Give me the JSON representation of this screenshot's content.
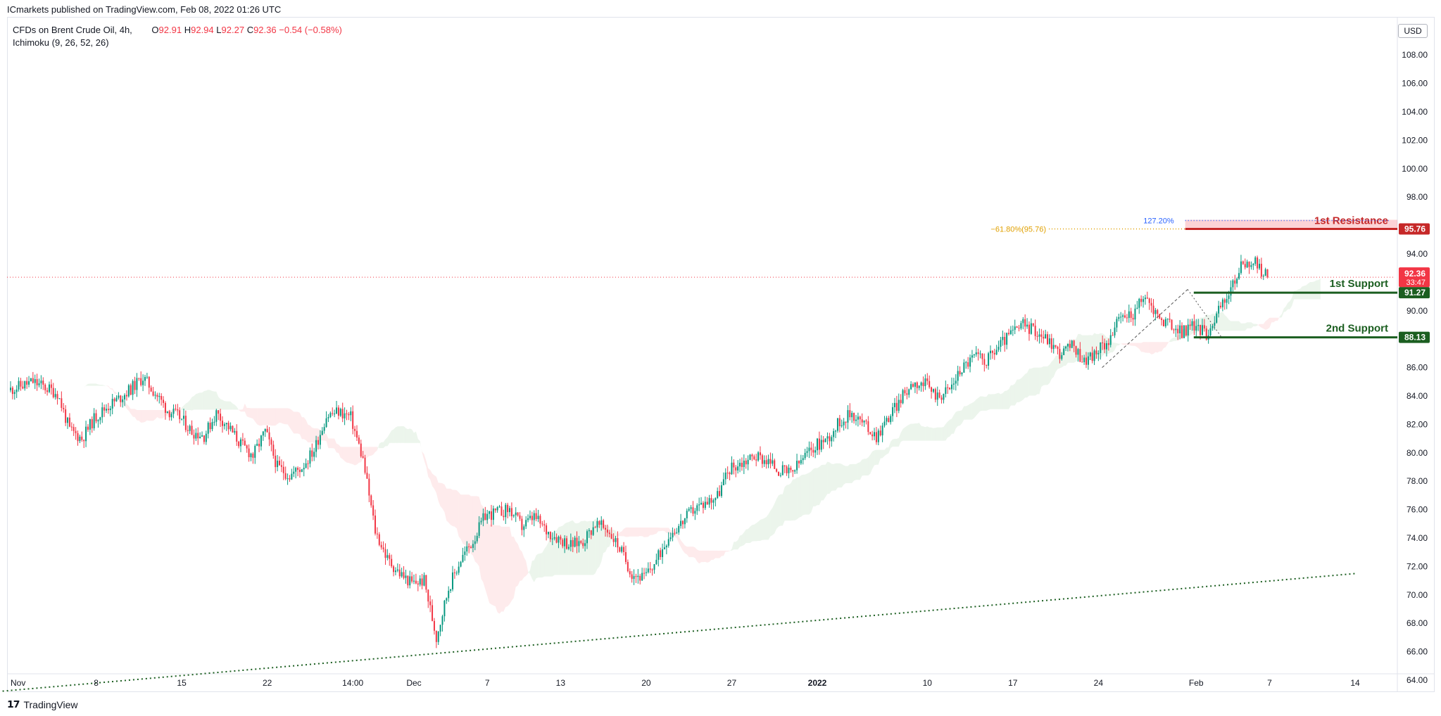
{
  "publisher": "ICmarkets published on TradingView.com, Feb 08, 2022 01:26 UTC",
  "legend": {
    "symbol": "CFDs on Brent Crude Oil, 4h,",
    "indicator": "Ichimoku (9, 26, 52, 26)",
    "open_label": "O",
    "open": "92.91",
    "high_label": "H",
    "high": "92.94",
    "low_label": "L",
    "low": "92.27",
    "close_label": "C",
    "close": "92.36",
    "change": "−0.54 (−0.58%)"
  },
  "currency": "USD",
  "footer": {
    "brand": "TradingView"
  },
  "colors": {
    "up": "#089981",
    "down": "#f23645",
    "resistance": "#c62828",
    "support": "#1b5e20",
    "fib": "#e0a000",
    "ext": "#2962ff",
    "trend": "#1b5e20"
  },
  "chart_data": {
    "type": "candlestick",
    "title": "CFDs on Brent Crude Oil, 4h",
    "ylim": [
      62.6,
      109.5
    ],
    "y_ticks": [
      "64.00",
      "66.00",
      "68.00",
      "70.00",
      "72.00",
      "74.00",
      "76.00",
      "78.00",
      "80.00",
      "82.00",
      "84.00",
      "86.00",
      "88.00",
      "90.00",
      "94.00",
      "98.00",
      "100.00",
      "102.00",
      "104.00",
      "106.00",
      "108.00"
    ],
    "x_ticks": [
      "Nov",
      "8",
      "15",
      "22",
      "14:00",
      "Dec",
      "7",
      "13",
      "20",
      "27",
      "2022",
      "10",
      "17",
      "24",
      "Feb",
      "7",
      "14"
    ],
    "x_tick_days": [
      0,
      7,
      14,
      21,
      28,
      33,
      39,
      45,
      52,
      59,
      66,
      75,
      82,
      89,
      97,
      103,
      110
    ],
    "last_price": 92.36,
    "countdown": "33:47",
    "levels": [
      {
        "name": "1st Resistance",
        "value": 95.76,
        "label": "95.76"
      },
      {
        "name": "1st Support",
        "value": 91.27,
        "label": "91.27"
      },
      {
        "name": "2nd Support",
        "value": 88.13,
        "label": "88.13"
      }
    ],
    "fib_label": "−61.80%(95.76)",
    "ext_label": "127.20%",
    "price_path": [
      [
        0,
        84.4
      ],
      [
        2,
        85.0
      ],
      [
        4,
        84.2
      ],
      [
        5,
        81.6
      ],
      [
        6,
        81.0
      ],
      [
        7,
        82.4
      ],
      [
        8,
        83.2
      ],
      [
        9,
        83.8
      ],
      [
        10,
        84.5
      ],
      [
        11,
        85.3
      ],
      [
        12,
        84.2
      ],
      [
        13,
        83.0
      ],
      [
        14,
        82.5
      ],
      [
        15,
        81.5
      ],
      [
        16,
        81.2
      ],
      [
        17,
        82.8
      ],
      [
        18,
        81.8
      ],
      [
        19,
        80.6
      ],
      [
        20,
        79.8
      ],
      [
        21,
        81.5
      ],
      [
        22,
        79.0
      ],
      [
        23,
        78.4
      ],
      [
        24,
        79.0
      ],
      [
        25,
        80.2
      ],
      [
        26,
        82.6
      ],
      [
        27,
        82.9
      ],
      [
        28,
        82.5
      ],
      [
        29,
        79.5
      ],
      [
        30,
        74.5
      ],
      [
        31,
        72.5
      ],
      [
        32,
        71.5
      ],
      [
        33,
        70.8
      ],
      [
        34,
        71.0
      ],
      [
        35,
        67.0
      ],
      [
        36,
        70.5
      ],
      [
        37,
        72.5
      ],
      [
        38,
        73.8
      ],
      [
        39,
        75.6
      ],
      [
        40,
        75.8
      ],
      [
        41,
        76.0
      ],
      [
        42,
        74.8
      ],
      [
        43,
        75.5
      ],
      [
        44,
        74.5
      ],
      [
        45,
        74.0
      ],
      [
        46,
        73.5
      ],
      [
        47,
        73.8
      ],
      [
        48,
        75.0
      ],
      [
        49,
        74.6
      ],
      [
        50,
        73.3
      ],
      [
        51,
        71.5
      ],
      [
        52,
        71.2
      ],
      [
        53,
        72.4
      ],
      [
        54,
        74.2
      ],
      [
        55,
        75.0
      ],
      [
        56,
        76.0
      ],
      [
        57,
        76.5
      ],
      [
        58,
        77.0
      ],
      [
        59,
        78.9
      ],
      [
        60,
        79.3
      ],
      [
        61,
        79.8
      ],
      [
        62,
        79.5
      ],
      [
        63,
        78.8
      ],
      [
        64,
        78.5
      ],
      [
        65,
        79.6
      ],
      [
        66,
        80.5
      ],
      [
        67,
        81.0
      ],
      [
        68,
        82.2
      ],
      [
        69,
        82.8
      ],
      [
        70,
        82.0
      ],
      [
        71,
        81.2
      ],
      [
        72,
        82.5
      ],
      [
        73,
        83.8
      ],
      [
        74,
        85.0
      ],
      [
        75,
        84.8
      ],
      [
        76,
        84.0
      ],
      [
        77,
        84.5
      ],
      [
        78,
        86.0
      ],
      [
        79,
        86.8
      ],
      [
        80,
        86.5
      ],
      [
        81,
        87.5
      ],
      [
        82,
        88.4
      ],
      [
        83,
        89.0
      ],
      [
        84,
        88.6
      ],
      [
        85,
        88.0
      ],
      [
        86,
        87.0
      ],
      [
        87,
        87.5
      ],
      [
        88,
        86.5
      ],
      [
        89,
        87.0
      ],
      [
        90,
        88.0
      ],
      [
        91,
        89.5
      ],
      [
        92,
        89.8
      ],
      [
        93,
        91.0
      ],
      [
        94,
        89.6
      ],
      [
        95,
        89.0
      ],
      [
        96,
        88.5
      ],
      [
        97,
        89.0
      ],
      [
        98,
        88.4
      ],
      [
        99,
        90.0
      ],
      [
        100,
        91.5
      ],
      [
        101,
        93.4
      ],
      [
        102,
        93.3
      ],
      [
        103,
        92.36
      ]
    ],
    "trend_line": [
      [
        -1,
        63.2
      ],
      [
        110,
        71.5
      ]
    ]
  }
}
